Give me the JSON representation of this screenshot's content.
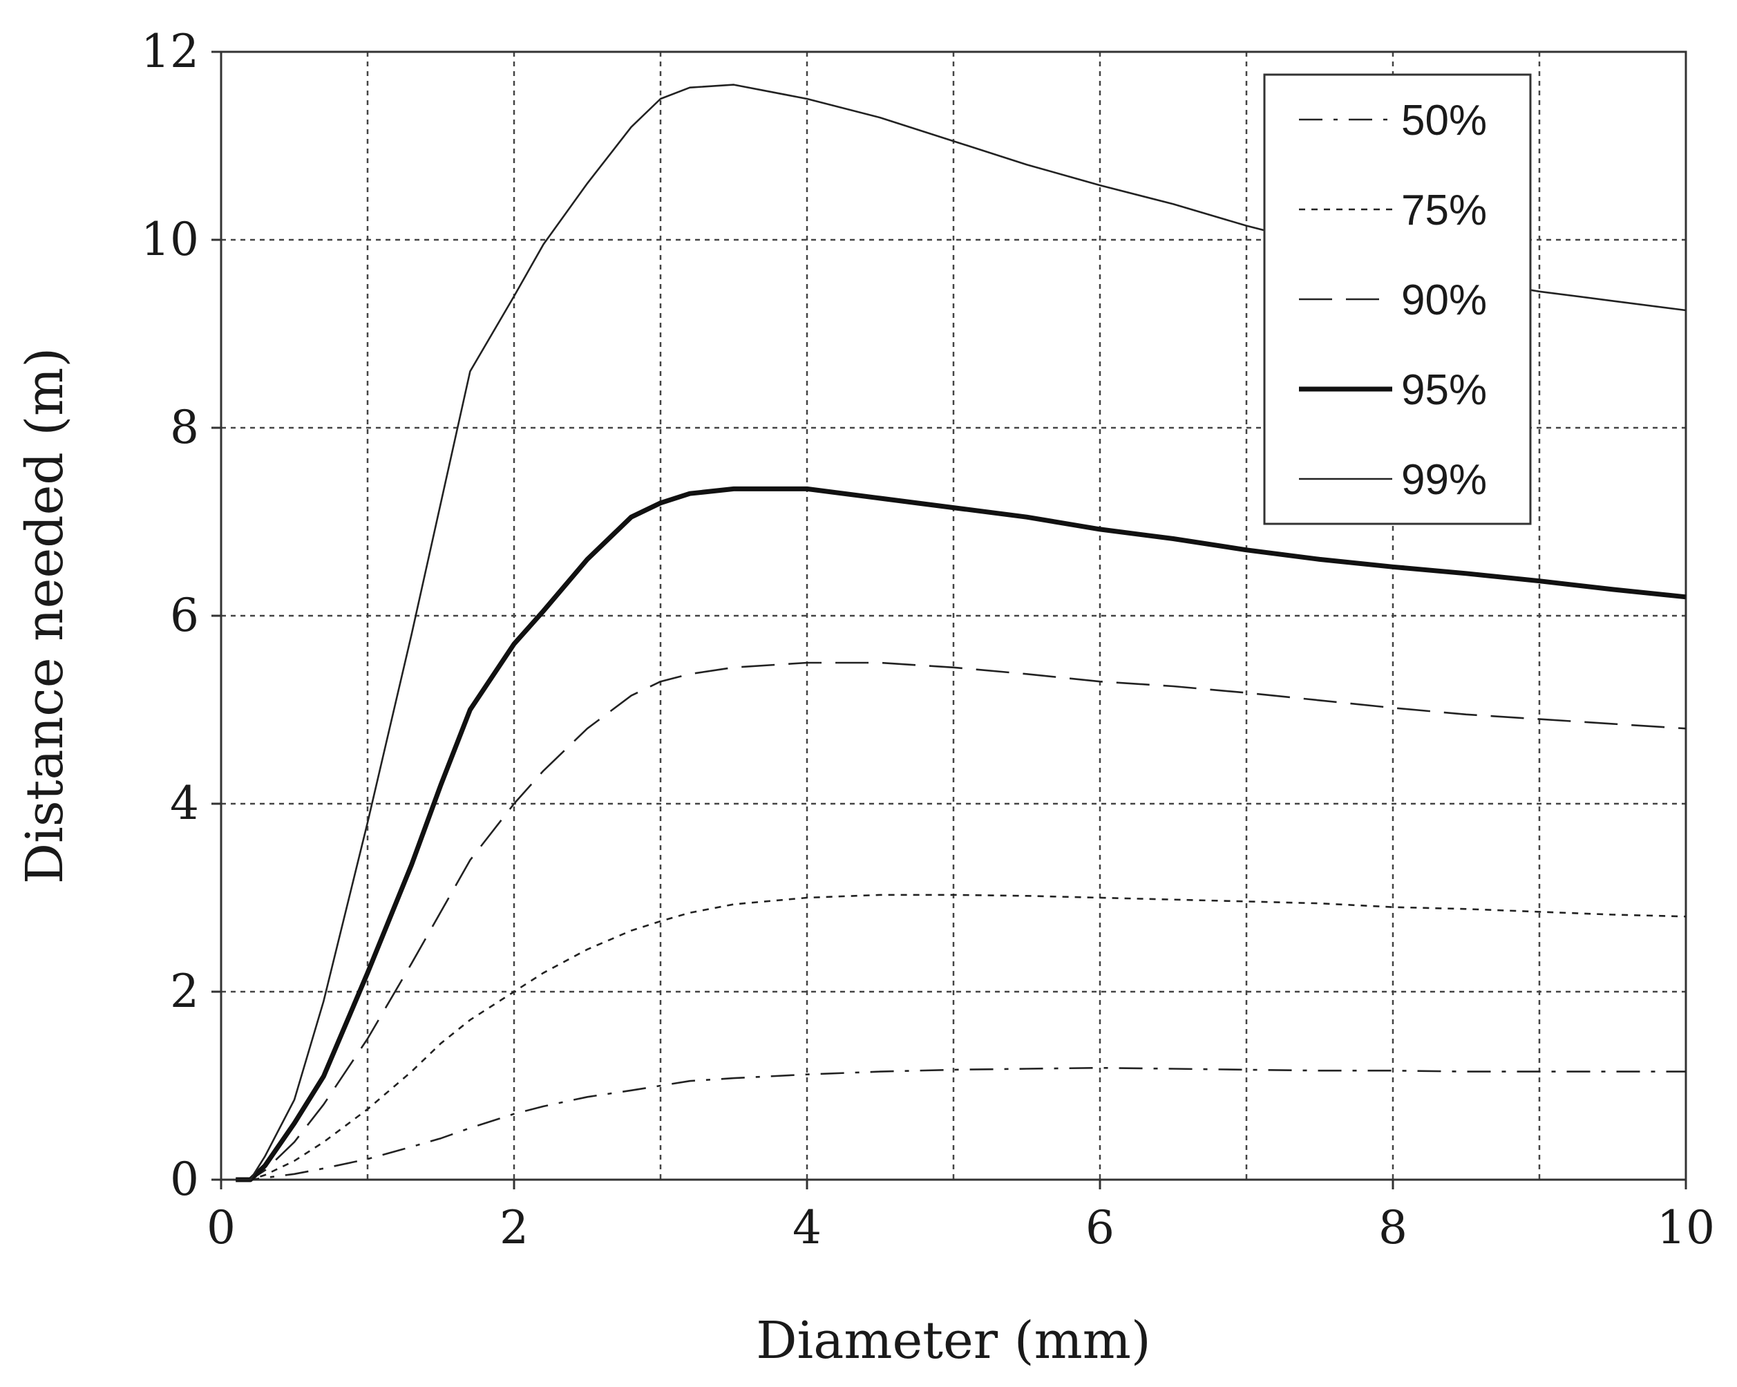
{
  "chart_data": {
    "type": "line",
    "title": "",
    "xlabel": "Diameter (mm)",
    "ylabel": "Distance needed (m)",
    "xlim": [
      0,
      10
    ],
    "ylim": [
      0,
      12
    ],
    "xticks": [
      0,
      2,
      4,
      6,
      8,
      10
    ],
    "xtick_labels": [
      "0",
      "2",
      "4",
      "6",
      "8",
      "10"
    ],
    "yticks": [
      0,
      2,
      4,
      6,
      8,
      10,
      12
    ],
    "ytick_labels": [
      "0",
      "2",
      "4",
      "6",
      "8",
      "10",
      "12"
    ],
    "grid": "dashed, every 1 mm on x and every 2 m on y",
    "legend_position": "top-right",
    "x": [
      0.1,
      0.2,
      0.3,
      0.5,
      0.7,
      1.0,
      1.3,
      1.5,
      1.7,
      2.0,
      2.2,
      2.5,
      2.8,
      3.0,
      3.2,
      3.5,
      4.0,
      4.5,
      5.0,
      5.5,
      6.0,
      6.5,
      7.0,
      7.5,
      8.0,
      8.5,
      9.0,
      9.5,
      10.0
    ],
    "series": [
      {
        "name": "50%",
        "line_style": "dash-dot",
        "line_weight": "thin",
        "color": "#222222",
        "values": [
          0.0,
          0.0,
          0.02,
          0.06,
          0.12,
          0.22,
          0.35,
          0.44,
          0.55,
          0.7,
          0.78,
          0.88,
          0.95,
          1.0,
          1.05,
          1.08,
          1.12,
          1.15,
          1.17,
          1.18,
          1.19,
          1.18,
          1.17,
          1.16,
          1.16,
          1.15,
          1.15,
          1.15,
          1.15
        ]
      },
      {
        "name": "75%",
        "line_style": "dotted",
        "line_weight": "thin",
        "color": "#222222",
        "values": [
          0.0,
          0.0,
          0.05,
          0.2,
          0.4,
          0.75,
          1.15,
          1.45,
          1.7,
          2.0,
          2.2,
          2.45,
          2.65,
          2.75,
          2.84,
          2.93,
          3.0,
          3.03,
          3.03,
          3.02,
          3.0,
          2.98,
          2.96,
          2.94,
          2.9,
          2.88,
          2.85,
          2.82,
          2.8
        ]
      },
      {
        "name": "90%",
        "line_style": "long-dash",
        "line_weight": "thin",
        "color": "#222222",
        "values": [
          0.0,
          0.0,
          0.1,
          0.4,
          0.8,
          1.5,
          2.3,
          2.85,
          3.4,
          4.0,
          4.35,
          4.8,
          5.15,
          5.3,
          5.38,
          5.45,
          5.5,
          5.5,
          5.45,
          5.38,
          5.3,
          5.25,
          5.18,
          5.1,
          5.02,
          4.95,
          4.9,
          4.85,
          4.8
        ]
      },
      {
        "name": "95%",
        "line_style": "solid",
        "line_weight": "thick",
        "color": "#111111",
        "values": [
          0.0,
          0.0,
          0.15,
          0.6,
          1.1,
          2.2,
          3.35,
          4.2,
          5.0,
          5.7,
          6.05,
          6.6,
          7.05,
          7.2,
          7.3,
          7.35,
          7.35,
          7.25,
          7.15,
          7.05,
          6.92,
          6.82,
          6.7,
          6.6,
          6.52,
          6.45,
          6.37,
          6.28,
          6.2
        ]
      },
      {
        "name": "99%",
        "line_style": "solid",
        "line_weight": "thin",
        "color": "#222222",
        "values": [
          0.0,
          0.0,
          0.25,
          0.85,
          1.9,
          3.8,
          5.8,
          7.2,
          8.6,
          9.4,
          9.95,
          10.6,
          11.2,
          11.5,
          11.62,
          11.65,
          11.5,
          11.3,
          11.05,
          10.8,
          10.58,
          10.38,
          10.15,
          9.95,
          9.76,
          9.58,
          9.45,
          9.35,
          9.25
        ]
      }
    ]
  }
}
